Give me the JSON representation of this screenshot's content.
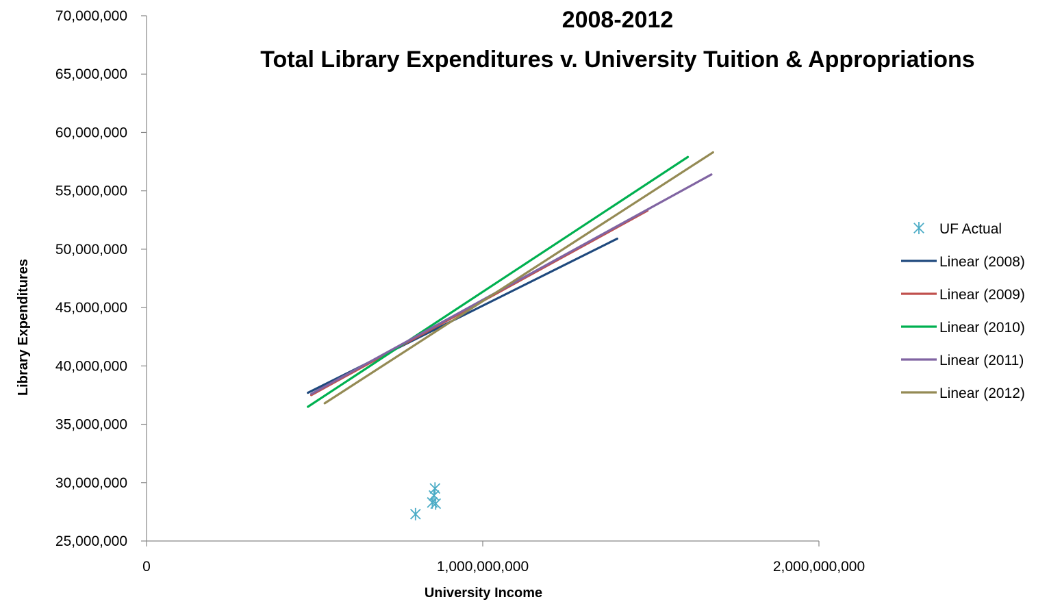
{
  "chart_data": {
    "type": "scatter",
    "title": [
      "2008-2012",
      "Total Library Expenditures v. University Tuition & Appropriations"
    ],
    "xlabel": "University Income",
    "ylabel": "Library Expenditures",
    "xlim": [
      0,
      2000000000
    ],
    "ylim": [
      25000000,
      70000000
    ],
    "x_ticks": [
      0,
      1000000000,
      2000000000
    ],
    "x_tick_labels": [
      "0",
      "1,000,000,000",
      "2,000,000,000"
    ],
    "y_ticks": [
      25000000,
      30000000,
      35000000,
      40000000,
      45000000,
      50000000,
      55000000,
      60000000,
      65000000,
      70000000
    ],
    "y_tick_labels": [
      "25,000,000",
      "30,000,000",
      "35,000,000",
      "40,000,000",
      "45,000,000",
      "50,000,000",
      "55,000,000",
      "60,000,000",
      "65,000,000",
      "70,000,000"
    ],
    "grid": false,
    "legend_position": "right",
    "scatter_series": {
      "name": "UF Actual",
      "color": "#4BACC6",
      "marker": "asterisk",
      "points": [
        {
          "x": 800000000,
          "y": 27300000
        },
        {
          "x": 850000000,
          "y": 28300000
        },
        {
          "x": 855000000,
          "y": 28900000
        },
        {
          "x": 858000000,
          "y": 29500000
        },
        {
          "x": 860000000,
          "y": 28200000
        }
      ]
    },
    "series": [
      {
        "name": "Linear (2008)",
        "color": "#1F497D",
        "x": [
          480000000,
          1400000000
        ],
        "y": [
          37700000,
          50900000
        ]
      },
      {
        "name": "Linear (2009)",
        "color": "#C0504D",
        "x": [
          490000000,
          1490000000
        ],
        "y": [
          37500000,
          53300000
        ]
      },
      {
        "name": "Linear (2010)",
        "color": "#00B050",
        "x": [
          480000000,
          1610000000
        ],
        "y": [
          36500000,
          57900000
        ]
      },
      {
        "name": "Linear (2011)",
        "color": "#8064A2",
        "x": [
          490000000,
          1680000000
        ],
        "y": [
          37600000,
          56400000
        ]
      },
      {
        "name": "Linear (2012)",
        "color": "#948A54",
        "x": [
          530000000,
          1685000000
        ],
        "y": [
          36800000,
          58300000
        ]
      }
    ]
  }
}
